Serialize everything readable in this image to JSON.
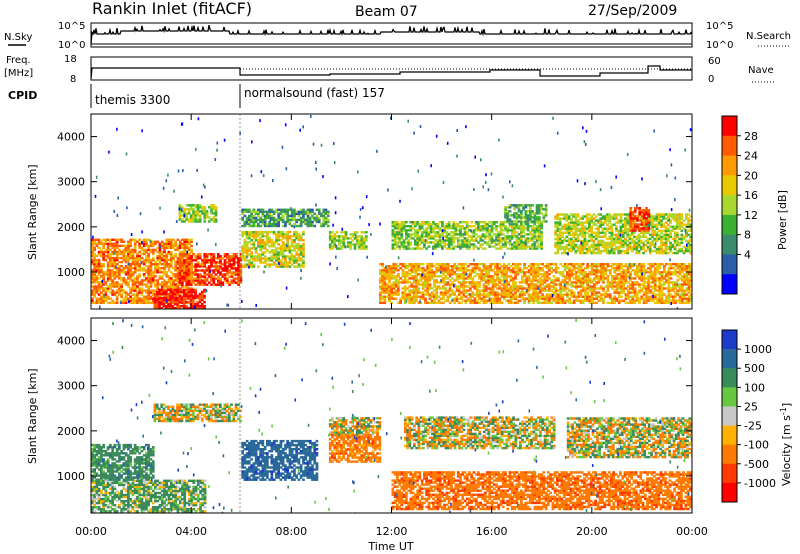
{
  "header": {
    "title": "Rankin Inlet (fitACF)",
    "beam": "Beam 07",
    "date": "27/Sep/2009"
  },
  "top_strip": {
    "left_label": "N.Sky",
    "left_ticks": [
      "10^5",
      "10^0"
    ],
    "right_ticks": [
      "10^5",
      "10^0"
    ],
    "right_label": "N.Search"
  },
  "freq_strip": {
    "left_label_1": "Freq.",
    "left_label_2": "[MHz]",
    "left_ticks": [
      "18",
      "8"
    ],
    "right_ticks": [
      "60",
      "0"
    ],
    "right_label": "Nave"
  },
  "cpid": {
    "label": "CPID",
    "segments": [
      {
        "name": "themis 3300",
        "start_hour": 0
      },
      {
        "name": "normalsound (fast) 157",
        "start_hour": 6.0
      }
    ]
  },
  "x_axis": {
    "label": "Time UT",
    "ticks": [
      "00:00",
      "04:00",
      "08:00",
      "12:00",
      "16:00",
      "20:00",
      "00:00"
    ],
    "range_hours": [
      0,
      24
    ]
  },
  "y_axis": {
    "label": "Slant Range [km]",
    "ticks": [
      "1000",
      "2000",
      "3000",
      "4000"
    ],
    "range": [
      180,
      4500
    ]
  },
  "power_scale": {
    "label": "Power [dB]",
    "ticks": [
      "28",
      "24",
      "20",
      "16",
      "12",
      "8",
      "4"
    ],
    "colors": [
      "#ff0000",
      "#ff5a00",
      "#ff9a00",
      "#e8c800",
      "#a8d830",
      "#3cb030",
      "#3a8c6c",
      "#2a5fa8",
      "#0000ff"
    ]
  },
  "velocity_scale": {
    "label": "Velocity [m s",
    "label_sup": "-1",
    "label_end": "]",
    "ticks": [
      "1000",
      "500",
      "100",
      "25",
      "-25",
      "-100",
      "-500",
      "-1000"
    ],
    "colors": [
      "#1a3cc8",
      "#2a6a9a",
      "#3a8a5a",
      "#66c840",
      "#c8c8c8",
      "#ffb000",
      "#ff7a00",
      "#ff3a00",
      "#ff0000"
    ]
  },
  "chart_data": [
    {
      "type": "heatmap",
      "title": "Power",
      "xlabel": "Time UT",
      "ylabel": "Slant Range [km]",
      "xlim": [
        0,
        24
      ],
      "ylim": [
        180,
        4500
      ],
      "colorbar": {
        "label": "Power [dB]",
        "ticks": [
          4,
          8,
          12,
          16,
          20,
          24,
          28
        ]
      },
      "echo_regions": [
        {
          "t": [
            0.0,
            4.0
          ],
          "range": [
            300,
            1700
          ],
          "value_db": 22
        },
        {
          "t": [
            2.5,
            4.5
          ],
          "range": [
            180,
            600
          ],
          "value_db": 28
        },
        {
          "t": [
            3.5,
            6.0
          ],
          "range": [
            700,
            1400
          ],
          "value_db": 26
        },
        {
          "t": [
            3.5,
            5.0
          ],
          "range": [
            2100,
            2500
          ],
          "value_db": 14
        },
        {
          "t": [
            6.0,
            8.5
          ],
          "range": [
            1100,
            1900
          ],
          "value_db": 16
        },
        {
          "t": [
            6.0,
            9.5
          ],
          "range": [
            2000,
            2400
          ],
          "value_db": 9
        },
        {
          "t": [
            9.5,
            11.0
          ],
          "range": [
            1500,
            1900
          ],
          "value_db": 14
        },
        {
          "t": [
            11.5,
            24.0
          ],
          "range": [
            300,
            1200
          ],
          "value_db": 20
        },
        {
          "t": [
            12.0,
            18.0
          ],
          "range": [
            1500,
            2100
          ],
          "value_db": 13
        },
        {
          "t": [
            16.5,
            18.2
          ],
          "range": [
            2100,
            2500
          ],
          "value_db": 10
        },
        {
          "t": [
            18.5,
            24.0
          ],
          "range": [
            1400,
            2300
          ],
          "value_db": 15
        },
        {
          "t": [
            21.5,
            22.3
          ],
          "range": [
            1900,
            2400
          ],
          "value_db": 26
        }
      ]
    },
    {
      "type": "heatmap",
      "title": "Velocity",
      "xlabel": "Time UT",
      "ylabel": "Slant Range [km]",
      "xlim": [
        0,
        24
      ],
      "ylim": [
        180,
        4500
      ],
      "colorbar": {
        "label": "Velocity [m s-1]",
        "ticks": [
          -1000,
          -500,
          -100,
          -25,
          25,
          100,
          500,
          1000
        ]
      },
      "echo_regions": [
        {
          "t": [
            0.0,
            2.5
          ],
          "range": [
            900,
            1700
          ],
          "value_ms": 300
        },
        {
          "t": [
            0.0,
            4.5
          ],
          "range": [
            200,
            900
          ],
          "value_ms": 150
        },
        {
          "t": [
            2.5,
            6.0
          ],
          "range": [
            2200,
            2600
          ],
          "value_ms": 0
        },
        {
          "t": [
            6.0,
            9.0
          ],
          "range": [
            900,
            1800
          ],
          "value_ms": 800
        },
        {
          "t": [
            9.5,
            11.5
          ],
          "range": [
            1300,
            1900
          ],
          "value_ms": -300
        },
        {
          "t": [
            9.5,
            11.5
          ],
          "range": [
            1900,
            2300
          ],
          "value_ms": 0
        },
        {
          "t": [
            12.0,
            24.0
          ],
          "range": [
            250,
            1100
          ],
          "value_ms": -350
        },
        {
          "t": [
            12.5,
            18.5
          ],
          "range": [
            1600,
            2300
          ],
          "value_ms": 0
        },
        {
          "t": [
            19.0,
            24.0
          ],
          "range": [
            1400,
            2300
          ],
          "value_ms": 0
        }
      ]
    }
  ]
}
